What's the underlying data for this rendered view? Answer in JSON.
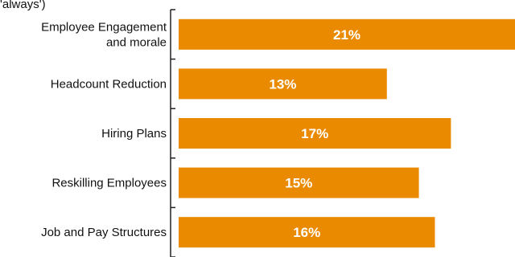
{
  "chart_data": {
    "type": "bar",
    "orientation": "horizontal",
    "title_fragment": "'always')",
    "categories": [
      "Employee Engagement and morale",
      "Headcount Reduction",
      "Hiring Plans",
      "Reskilling Employees",
      "Job and Pay Structures"
    ],
    "category_lines": [
      [
        "Employee Engagement",
        "and morale"
      ],
      [
        "Headcount Reduction"
      ],
      [
        "Hiring Plans"
      ],
      [
        "Reskilling Employees"
      ],
      [
        "Job and Pay Structures"
      ]
    ],
    "values": [
      21,
      13,
      17,
      15,
      16
    ],
    "value_labels": [
      "21%",
      "13%",
      "17%",
      "15%",
      "16%"
    ],
    "value_unit": "%",
    "xlim": [
      0,
      21
    ],
    "grid": false,
    "legend": "none",
    "bar_color": "#E98A00",
    "label_color": "#FFFFFF",
    "axis_color": "#222222"
  }
}
